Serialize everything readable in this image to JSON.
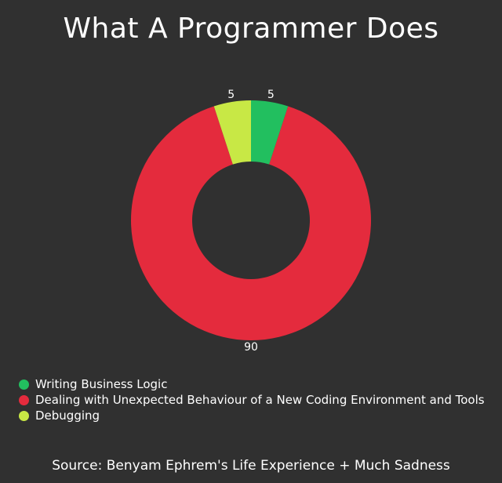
{
  "chart_data": {
    "type": "pie",
    "style": "donut",
    "title": "What A Programmer Does",
    "slices": [
      {
        "label": "Writing Business Logic",
        "value": 5,
        "color": "#22bf5f"
      },
      {
        "label": "Dealing with Unexpected Behaviour of a New Coding Environment and Tools",
        "value": 90,
        "color": "#e42b3d"
      },
      {
        "label": "Debugging",
        "value": 5,
        "color": "#c8e845"
      }
    ],
    "legend_position": "bottom-left",
    "start_angle": "top",
    "direction": "clockwise"
  },
  "source": "Source: Benyam Ephrem's Life Experience + Much Sadness",
  "colors": {
    "background": "#303030",
    "text": "#ffffff"
  }
}
